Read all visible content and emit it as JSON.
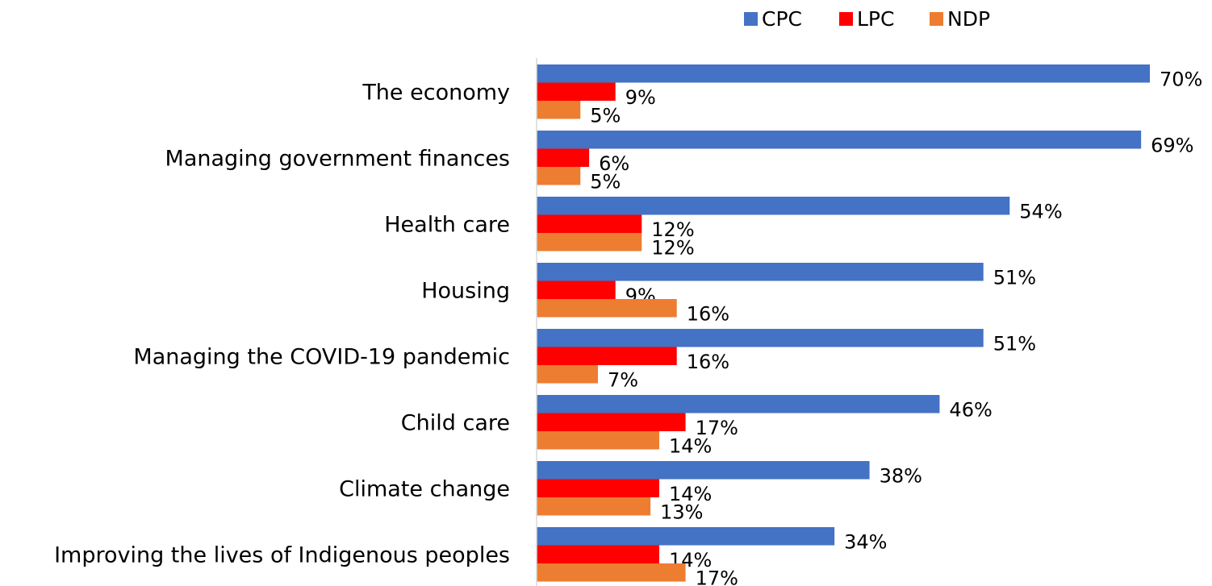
{
  "chart_data": {
    "type": "bar",
    "orientation": "horizontal",
    "categories": [
      "The economy",
      "Managing government finances",
      "Health care",
      "Housing",
      "Managing the COVID-19 pandemic",
      "Child care",
      "Climate change",
      "Improving the lives of Indigenous peoples"
    ],
    "series": [
      {
        "name": "CPC",
        "color": "#4472c4",
        "values": [
          70,
          69,
          54,
          51,
          51,
          46,
          38,
          34
        ],
        "value_labels": [
          "70%",
          "69%",
          "54%",
          "51%",
          "51%",
          "46%",
          "38%",
          "34%"
        ]
      },
      {
        "name": "LPC",
        "color": "#ff0000",
        "values": [
          9,
          6,
          12,
          9,
          16,
          17,
          14,
          14
        ],
        "value_labels": [
          "9%",
          "6%",
          "12%",
          "9%",
          "16%",
          "17%",
          "14%",
          "14%"
        ]
      },
      {
        "name": "NDP",
        "color": "#ed7d31",
        "values": [
          5,
          5,
          12,
          16,
          7,
          14,
          13,
          17
        ],
        "value_labels": [
          "5%",
          "5%",
          "12%",
          "16%",
          "7%",
          "14%",
          "13%",
          "17%"
        ]
      }
    ],
    "legend": "top-right"
  }
}
